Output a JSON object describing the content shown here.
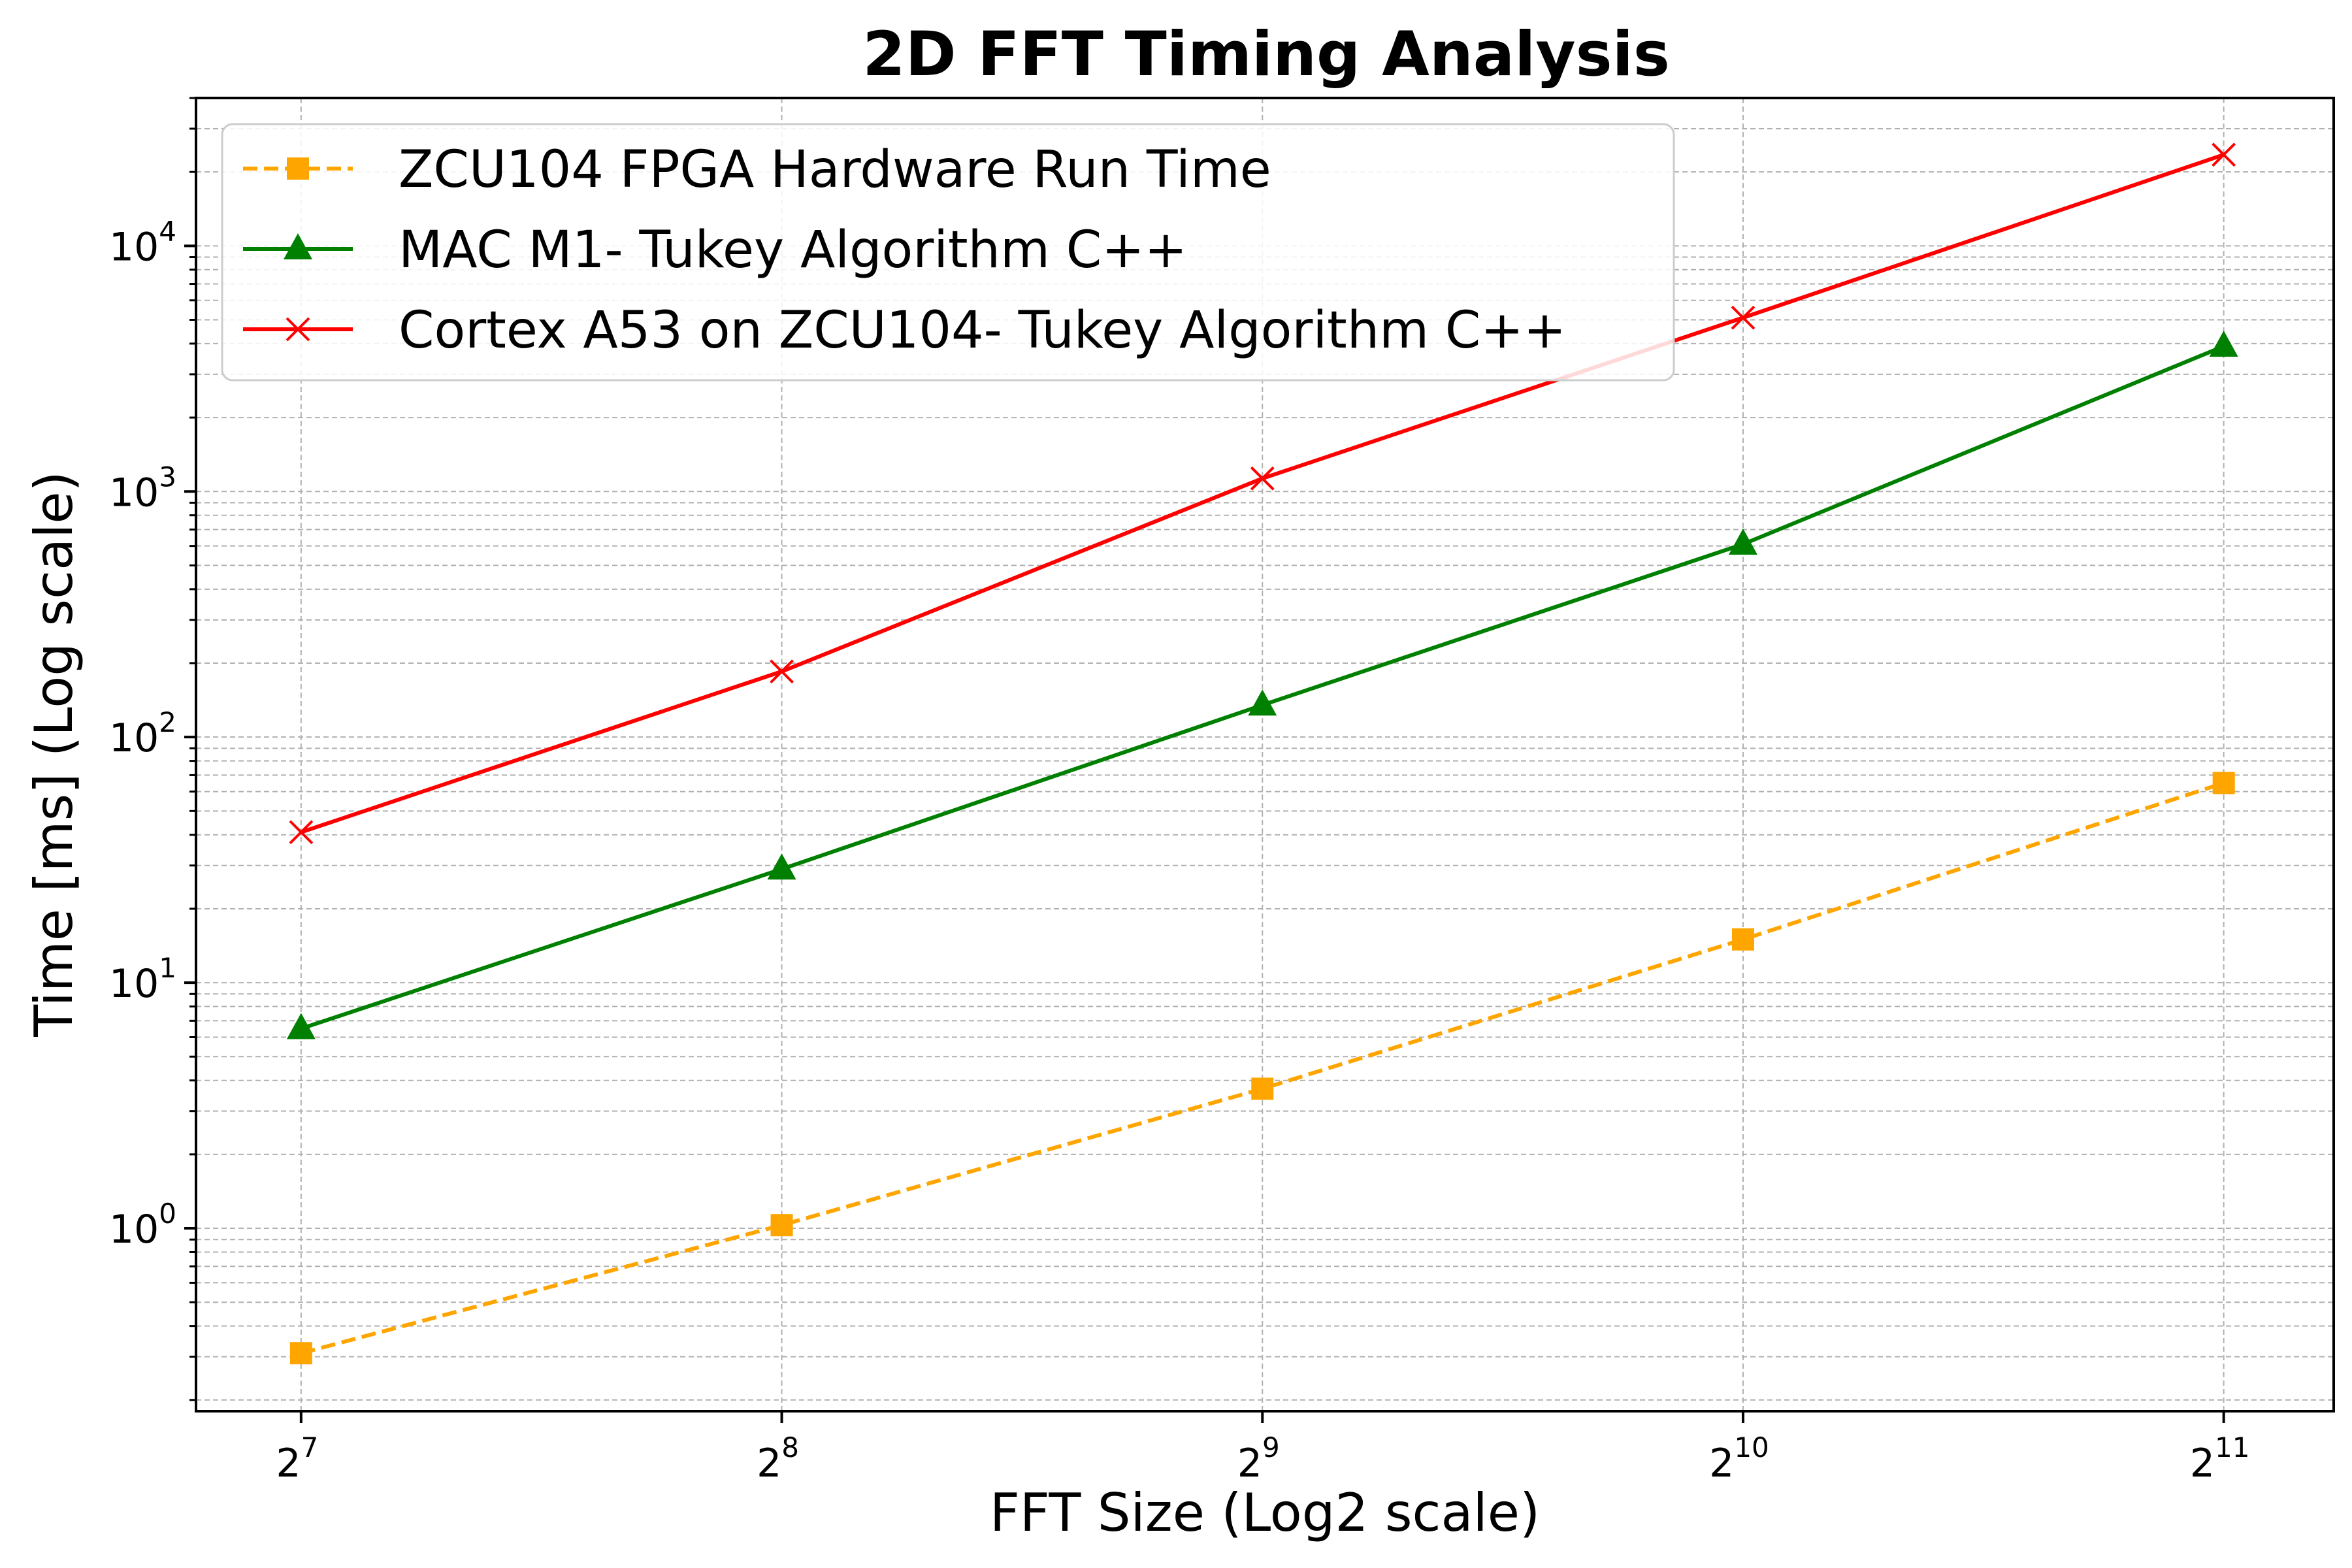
{
  "chart_data": {
    "type": "line",
    "title": "2D FFT Timing Analysis",
    "xlabel": "FFT Size (Log2 scale)",
    "ylabel": "Time [ms] (Log scale)",
    "x_scale": "log2",
    "y_scale": "log10",
    "x": [
      128,
      256,
      512,
      1024,
      2048
    ],
    "x_tick_labels": [
      {
        "base": "2",
        "exp": "7"
      },
      {
        "base": "2",
        "exp": "8"
      },
      {
        "base": "2",
        "exp": "9"
      },
      {
        "base": "2",
        "exp": "10"
      },
      {
        "base": "2",
        "exp": "11"
      }
    ],
    "y_tick_labels": [
      {
        "base": "10",
        "exp": "0",
        "value": 1
      },
      {
        "base": "10",
        "exp": "1",
        "value": 10
      },
      {
        "base": "10",
        "exp": "2",
        "value": 100
      },
      {
        "base": "10",
        "exp": "3",
        "value": 1000
      },
      {
        "base": "10",
        "exp": "4",
        "value": 10000
      }
    ],
    "xlim": [
      110,
      2400
    ],
    "ylim": [
      0.18,
      40000
    ],
    "grid": true,
    "legend_position": "top-left",
    "series": [
      {
        "name": "ZCU104 FPGA Hardware Run Time",
        "values": [
          0.31,
          1.03,
          3.7,
          15,
          65
        ],
        "color": "#FFA500",
        "marker": "square",
        "line_style": "dashed"
      },
      {
        "name": "MAC M1- Tukey Algorithm C++",
        "values": [
          6.5,
          29,
          135,
          610,
          3900
        ],
        "color": "#008000",
        "marker": "triangle",
        "line_style": "solid"
      },
      {
        "name": "Cortex A53 on ZCU104- Tukey Algorithm C++",
        "values": [
          41,
          185,
          1130,
          5100,
          23500
        ],
        "color": "#FF0000",
        "marker": "x",
        "line_style": "solid"
      }
    ]
  }
}
